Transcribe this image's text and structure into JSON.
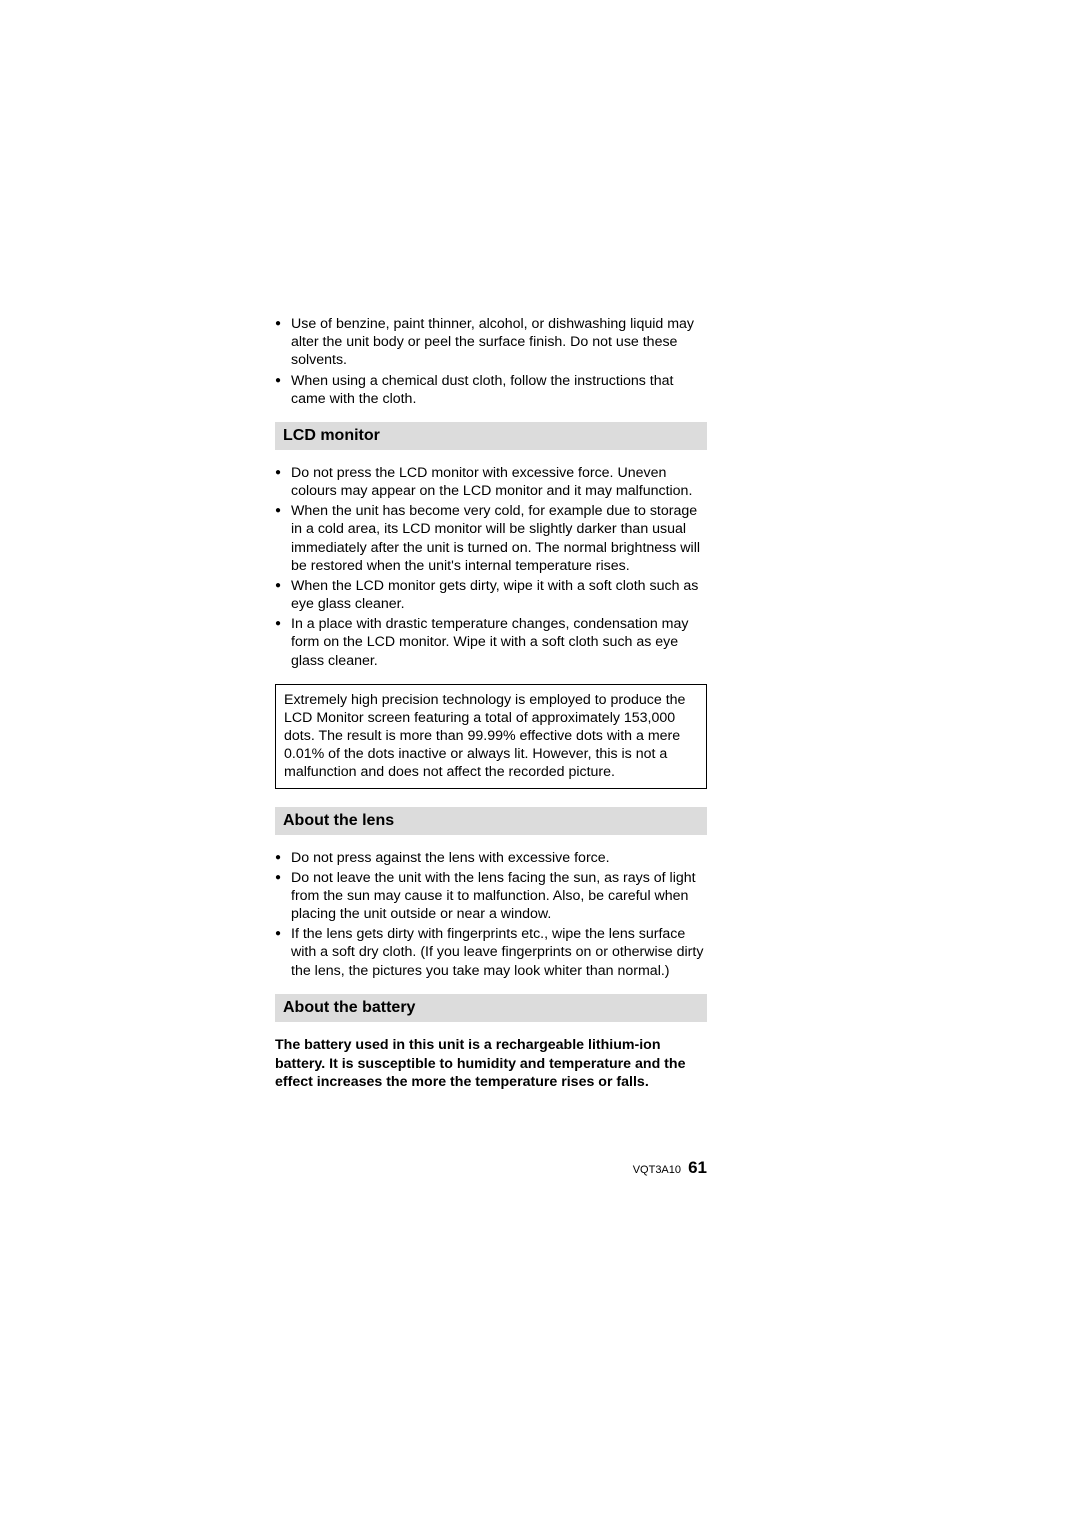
{
  "intro_bullets": [
    "Use of benzine, paint thinner, alcohol, or dishwashing liquid may alter the unit body or peel the surface finish. Do not use these solvents.",
    "When using a chemical dust cloth, follow the instructions that came with the cloth."
  ],
  "sections": {
    "lcd": {
      "title": "LCD monitor",
      "bullets": [
        "Do not press the LCD monitor with excessive force. Uneven colours may appear on the LCD monitor and it may malfunction.",
        "When the unit has become very cold, for example due to storage in a cold area, its LCD monitor will be slightly darker than usual immediately after the unit is turned on. The normal brightness will be restored when the unit's internal temperature rises.",
        "When the LCD monitor gets dirty, wipe it with a soft cloth such as eye glass cleaner.",
        "In a place with drastic temperature changes, condensation may form on the LCD monitor. Wipe it with a soft cloth such as eye glass cleaner."
      ],
      "box": "Extremely high precision technology is employed to produce the LCD Monitor screen featuring a total of approximately 153,000 dots. The result is more than 99.99% effective dots with a mere 0.01% of the dots inactive or always lit. However, this is not a malfunction and does not affect the recorded picture."
    },
    "lens": {
      "title": "About the lens",
      "bullets": [
        "Do not press against the lens with excessive force.",
        "Do not leave the unit with the lens facing the sun, as rays of light from the sun may cause it to malfunction. Also, be careful when placing the unit outside or near a window.",
        "If the lens gets dirty with fingerprints etc., wipe the lens surface with a soft dry cloth. (If you leave fingerprints on or otherwise dirty the lens, the pictures you take may look whiter than normal.)"
      ]
    },
    "battery": {
      "title": "About the battery",
      "para": "The battery used in this unit is a rechargeable lithium-ion battery. It is susceptible to humidity and temperature and the effect increases the more the temperature rises or falls."
    }
  },
  "footer": {
    "doc_code": "VQT3A10",
    "page_number": "61"
  }
}
